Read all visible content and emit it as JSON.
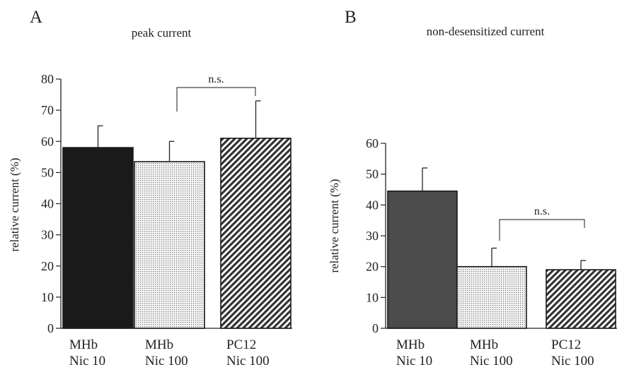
{
  "chart_data": [
    {
      "type": "bar",
      "panel": "A",
      "title": "peak current",
      "ylabel": "relative current (%)",
      "ylim": [
        0,
        80
      ],
      "yticks": [
        0,
        10,
        20,
        30,
        40,
        50,
        60,
        70,
        80
      ],
      "categories": [
        {
          "line1": "MHb",
          "line2": "Nic 10"
        },
        {
          "line1": "MHb",
          "line2": "Nic 100"
        },
        {
          "line1": "PC12",
          "line2": "Nic 100"
        }
      ],
      "values": [
        58,
        53.5,
        61
      ],
      "errors": [
        7,
        6.5,
        12
      ],
      "fills": [
        "solid-black",
        "fine-dots",
        "diagonal-hatch"
      ],
      "significance": {
        "from": 1,
        "to": 2,
        "label": "n.s."
      }
    },
    {
      "type": "bar",
      "panel": "B",
      "title": "non-desensitized current",
      "ylabel": "relative current (%)",
      "ylim": [
        0,
        60
      ],
      "yticks": [
        0,
        10,
        20,
        30,
        40,
        50,
        60
      ],
      "categories": [
        {
          "line1": "MHb",
          "line2": "Nic 10"
        },
        {
          "line1": "MHb",
          "line2": "Nic 100"
        },
        {
          "line1": "PC12",
          "line2": "Nic 100"
        }
      ],
      "values": [
        44.5,
        20,
        19
      ],
      "errors": [
        7.5,
        6,
        3
      ],
      "fills": [
        "dark-grey",
        "fine-dots",
        "diagonal-hatch"
      ],
      "significance": {
        "from": 1,
        "to": 2,
        "label": "n.s."
      }
    }
  ]
}
